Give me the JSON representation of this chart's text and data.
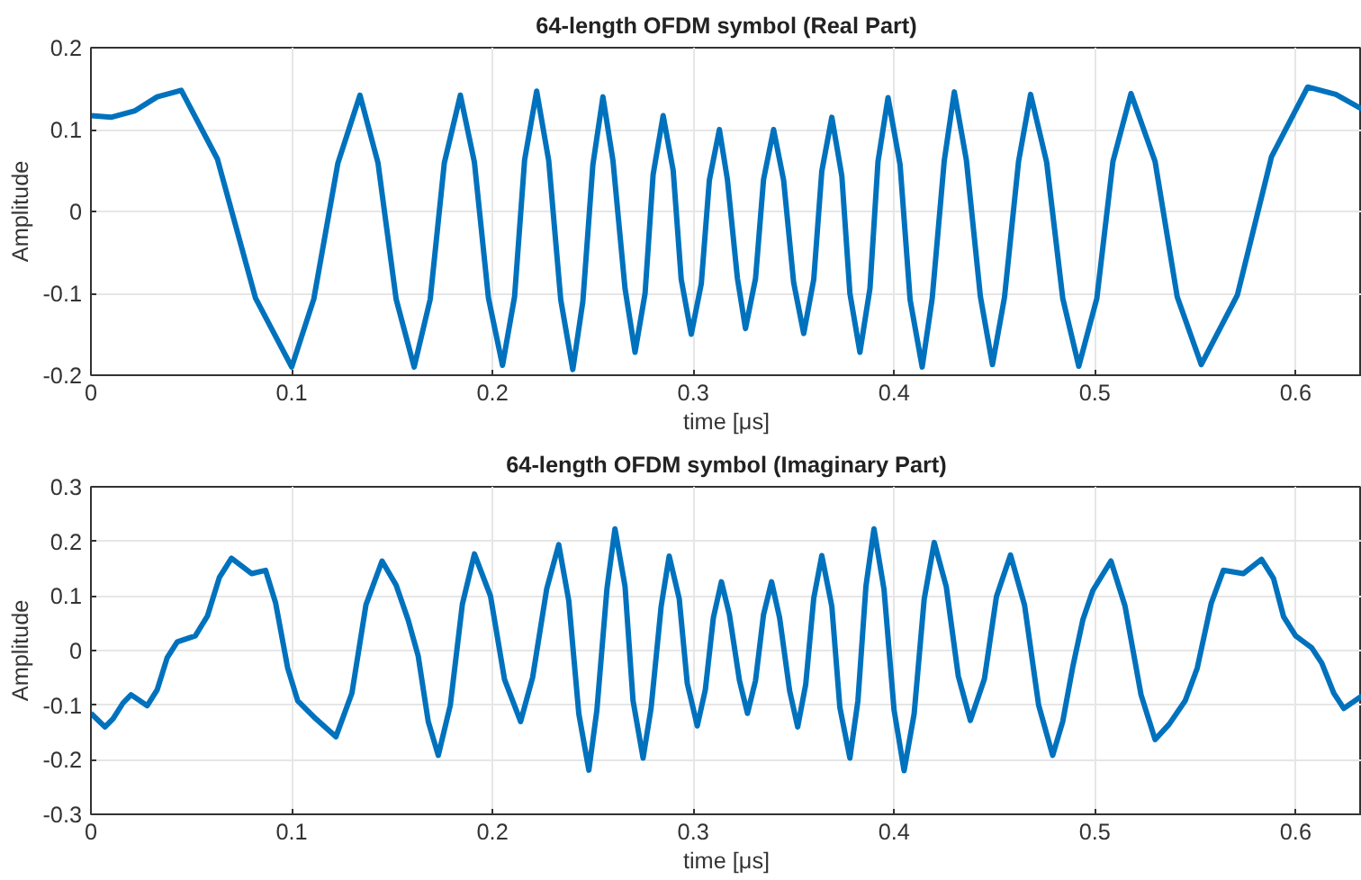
{
  "chart_data": [
    {
      "type": "line",
      "title": "64-length OFDM symbol (Real Part)",
      "xlabel": "time [μs]",
      "ylabel": "Amplitude",
      "xlim": [
        0,
        0.633
      ],
      "ylim": [
        -0.2,
        0.2
      ],
      "xticks": [
        0,
        0.1,
        0.2,
        0.3,
        0.4,
        0.5,
        0.6
      ],
      "yticks": [
        -0.2,
        -0.1,
        0,
        0.1,
        0.2
      ],
      "grid": true,
      "series": [
        {
          "color": "#0072bd",
          "x": [
            0,
            0.01,
            0.022,
            0.033,
            0.045,
            0.063,
            0.082,
            0.1,
            0.111,
            0.123,
            0.134,
            0.143,
            0.152,
            0.161,
            0.169,
            0.176,
            0.184,
            0.191,
            0.198,
            0.205,
            0.211,
            0.216,
            0.222,
            0.228,
            0.234,
            0.24,
            0.245,
            0.25,
            0.255,
            0.26,
            0.266,
            0.271,
            0.276,
            0.28,
            0.285,
            0.29,
            0.294,
            0.299,
            0.304,
            0.308,
            0.313,
            0.317,
            0.322,
            0.326,
            0.331,
            0.335,
            0.34,
            0.345,
            0.35,
            0.355,
            0.36,
            0.364,
            0.369,
            0.374,
            0.378,
            0.383,
            0.388,
            0.392,
            0.397,
            0.403,
            0.408,
            0.414,
            0.419,
            0.425,
            0.43,
            0.436,
            0.443,
            0.449,
            0.455,
            0.462,
            0.468,
            0.476,
            0.484,
            0.492,
            0.501,
            0.509,
            0.518,
            0.53,
            0.541,
            0.553,
            0.571,
            0.588,
            0.606,
            0.62,
            0.633
          ],
          "values": [
            0.117,
            0.115,
            0.123,
            0.14,
            0.148,
            0.064,
            -0.106,
            -0.19,
            -0.107,
            0.059,
            0.142,
            0.059,
            -0.107,
            -0.19,
            -0.107,
            0.059,
            0.142,
            0.06,
            -0.106,
            -0.188,
            -0.104,
            0.063,
            0.147,
            0.062,
            -0.108,
            -0.193,
            -0.11,
            0.057,
            0.14,
            0.062,
            -0.094,
            -0.172,
            -0.1,
            0.045,
            0.117,
            0.05,
            -0.083,
            -0.15,
            -0.088,
            0.038,
            0.1,
            0.039,
            -0.082,
            -0.143,
            -0.082,
            0.039,
            0.1,
            0.038,
            -0.087,
            -0.149,
            -0.083,
            0.049,
            0.115,
            0.043,
            -0.1,
            -0.172,
            -0.094,
            0.061,
            0.139,
            0.057,
            -0.108,
            -0.19,
            -0.106,
            0.062,
            0.146,
            0.063,
            -0.104,
            -0.187,
            -0.105,
            0.061,
            0.143,
            0.06,
            -0.106,
            -0.189,
            -0.106,
            0.061,
            0.144,
            0.061,
            -0.104,
            -0.187,
            -0.102,
            0.067,
            0.152,
            0.143,
            0.125
          ]
        }
      ]
    },
    {
      "type": "line",
      "title": "64-length OFDM symbol (Imaginary Part)",
      "xlabel": "time [μs]",
      "ylabel": "Amplitude",
      "xlim": [
        0,
        0.633
      ],
      "ylim": [
        -0.3,
        0.3
      ],
      "xticks": [
        0,
        0.1,
        0.2,
        0.3,
        0.4,
        0.5,
        0.6
      ],
      "yticks": [
        -0.3,
        -0.2,
        -0.1,
        0,
        0.1,
        0.2,
        0.3
      ],
      "grid": true,
      "series": [
        {
          "color": "#0072bd",
          "x": [
            0,
            0.007,
            0.011,
            0.016,
            0.02,
            0.028,
            0.033,
            0.038,
            0.043,
            0.052,
            0.058,
            0.064,
            0.07,
            0.08,
            0.087,
            0.092,
            0.098,
            0.103,
            0.112,
            0.122,
            0.13,
            0.137,
            0.145,
            0.152,
            0.158,
            0.163,
            0.168,
            0.173,
            0.179,
            0.185,
            0.191,
            0.199,
            0.206,
            0.214,
            0.22,
            0.227,
            0.233,
            0.238,
            0.243,
            0.248,
            0.252,
            0.257,
            0.261,
            0.266,
            0.27,
            0.275,
            0.279,
            0.284,
            0.288,
            0.293,
            0.297,
            0.302,
            0.306,
            0.31,
            0.314,
            0.318,
            0.323,
            0.327,
            0.331,
            0.335,
            0.339,
            0.343,
            0.348,
            0.352,
            0.356,
            0.36,
            0.364,
            0.369,
            0.373,
            0.378,
            0.382,
            0.386,
            0.39,
            0.395,
            0.4,
            0.405,
            0.41,
            0.415,
            0.42,
            0.426,
            0.432,
            0.438,
            0.445,
            0.451,
            0.458,
            0.465,
            0.472,
            0.479,
            0.484,
            0.489,
            0.494,
            0.499,
            0.508,
            0.515,
            0.523,
            0.53,
            0.537,
            0.545,
            0.551,
            0.558,
            0.564,
            0.574,
            0.583,
            0.589,
            0.594,
            0.6,
            0.608,
            0.613,
            0.619,
            0.624,
            0.633
          ],
          "values": [
            -0.115,
            -0.14,
            -0.125,
            -0.096,
            -0.081,
            -0.101,
            -0.072,
            -0.013,
            0.016,
            0.027,
            0.063,
            0.134,
            0.169,
            0.141,
            0.147,
            0.087,
            -0.032,
            -0.092,
            -0.125,
            -0.158,
            -0.078,
            0.084,
            0.164,
            0.12,
            0.056,
            -0.01,
            -0.13,
            -0.192,
            -0.1,
            0.085,
            0.177,
            0.1,
            -0.053,
            -0.13,
            -0.049,
            0.113,
            0.194,
            0.091,
            -0.116,
            -0.219,
            -0.109,
            0.113,
            0.223,
            0.118,
            -0.092,
            -0.197,
            -0.105,
            0.081,
            0.173,
            0.095,
            -0.06,
            -0.138,
            -0.072,
            0.06,
            0.126,
            0.066,
            -0.055,
            -0.115,
            -0.055,
            0.066,
            0.126,
            0.06,
            -0.074,
            -0.14,
            -0.062,
            0.096,
            0.174,
            0.081,
            -0.104,
            -0.197,
            -0.092,
            0.118,
            0.223,
            0.112,
            -0.109,
            -0.22,
            -0.116,
            0.094,
            0.198,
            0.117,
            -0.047,
            -0.128,
            -0.052,
            0.099,
            0.175,
            0.083,
            -0.1,
            -0.192,
            -0.13,
            -0.03,
            0.056,
            0.11,
            0.164,
            0.082,
            -0.081,
            -0.163,
            -0.135,
            -0.092,
            -0.032,
            0.087,
            0.147,
            0.141,
            0.167,
            0.132,
            0.062,
            0.027,
            0.005,
            -0.023,
            -0.078,
            -0.106,
            -0.083
          ]
        }
      ]
    }
  ]
}
